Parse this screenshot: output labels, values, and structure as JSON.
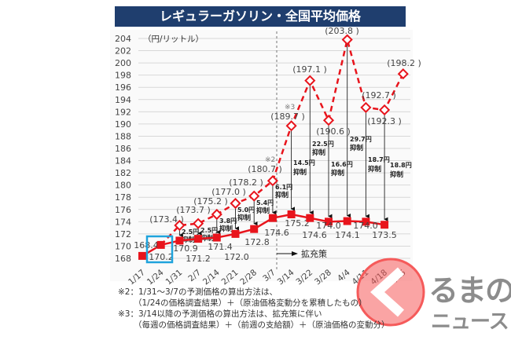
{
  "chart_data": {
    "type": "line",
    "title": "レギュラーガソリン・全国平均価格",
    "unit_label": "（円/リットル）",
    "categories": [
      "1/17",
      "1/24",
      "1/31",
      "2/7",
      "2/14",
      "2/21",
      "2/28",
      "3/7",
      "3/14",
      "3/22",
      "3/28",
      "4/4",
      "4/11",
      "4/18",
      "4/25"
    ],
    "ylim": [
      168,
      204
    ],
    "yticks": [
      168,
      170,
      172,
      174,
      176,
      178,
      180,
      182,
      184,
      186,
      188,
      190,
      192,
      194,
      196,
      198,
      200,
      202,
      204
    ],
    "grid": true,
    "series": [
      {
        "style": "solid-square",
        "color": "#e8141c",
        "values": [
          168.4,
          170.2,
          170.9,
          171.2,
          171.4,
          172.0,
          172.8,
          174.6,
          175.2,
          174.6,
          174.0,
          174.1,
          174.0,
          173.5,
          null
        ],
        "labels": [
          "168.4",
          "170.2",
          "170.9",
          "171.2",
          "171.4",
          "172.0",
          "172.8",
          "174.6",
          "175.2",
          "174.6",
          "174.0",
          "174.1",
          "174.0",
          "173.5",
          ""
        ]
      },
      {
        "style": "dashed-diamond",
        "color": "#e8141c",
        "values": [
          null,
          170.2,
          173.4,
          173.7,
          175.2,
          177.0,
          178.2,
          180.7,
          189.7,
          197.1,
          190.6,
          203.8,
          192.7,
          192.3,
          198.2
        ],
        "labels": [
          "",
          "",
          "(173.4 )",
          "(173.7 )",
          "(175.2 )",
          "(177.0 )",
          "(178.2 )",
          "(180.7 )",
          "(189.7 )",
          "(197.1 )",
          "(190.6 )",
          "(203.8 )",
          "(192.7 )",
          "(192.3 )",
          "(198.2 )"
        ]
      }
    ],
    "suppression": [
      null,
      null,
      "2.5円",
      "2.5円",
      "3.8円",
      "5.0円",
      "5.4円",
      "6.1円",
      "14.5円",
      "22.5円",
      "16.6円",
      "29.7円",
      "18.7円",
      "18.8円",
      null
    ],
    "suppression_word": "抑制",
    "annotations": {
      "note2_mark": "※2",
      "note3_mark": "※3",
      "expansion": "拡充策",
      "highlight_color": "#1fa3dc"
    }
  },
  "notes": [
    "※2：1/31～3/7の予測価格の算出方法は、",
    "（1/24の価格調査結果）＋（原油価格変動分を累積したもの）",
    "※3：3/14以降の予測価格の算出方法は、拡充策に伴い",
    "（毎週の価格調査結果）＋（前週の支給額）＋（原油価格の変動分）"
  ],
  "logo": {
    "line1": "るまの",
    "line2": "ニュース"
  }
}
